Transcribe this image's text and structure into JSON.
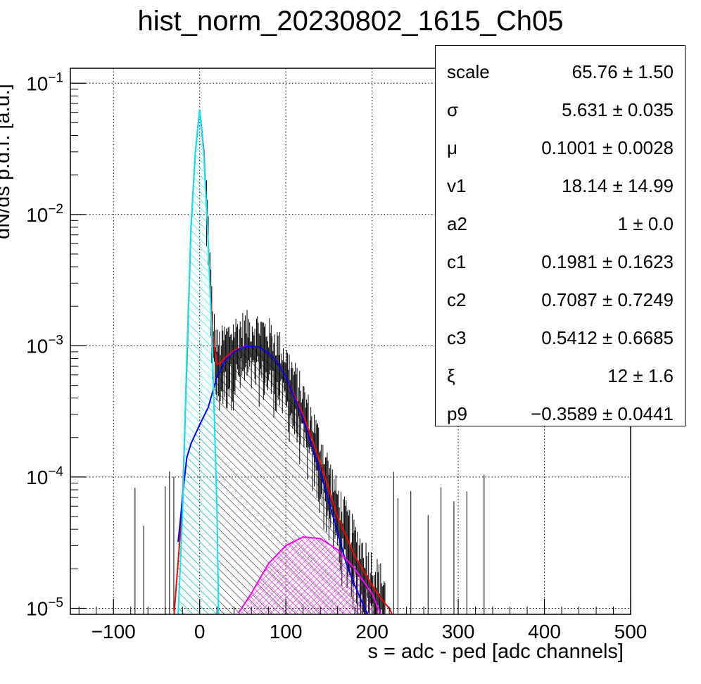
{
  "chart_data": {
    "type": "histogram",
    "title": "hist_norm_20230802_1615_Ch05",
    "xlabel": "s = adc - ped [adc channels]",
    "ylabel": "dN/ds p.d.f. [a.u.]",
    "xlim": [
      -150,
      500
    ],
    "ylim": [
      9e-06,
      0.13
    ],
    "yscale": "log",
    "grid": true,
    "xticks": [
      "−100",
      "0",
      "100",
      "200",
      "300",
      "400",
      "500"
    ],
    "xtick_values": [
      -100,
      0,
      100,
      200,
      300,
      400,
      500
    ],
    "yticks": [
      {
        "value": 0.1,
        "base": "10",
        "exp": "−1"
      },
      {
        "value": 0.01,
        "base": "10",
        "exp": "−2"
      },
      {
        "value": 0.001,
        "base": "10",
        "exp": "−3"
      },
      {
        "value": 0.0001,
        "base": "10",
        "exp": "−4"
      },
      {
        "value": 1e-05,
        "base": "10",
        "exp": "−5"
      }
    ],
    "curves": [
      {
        "color": "#ff0000",
        "role": "total fit",
        "x": [
          -30,
          -20,
          -10,
          -5,
          0,
          5,
          10,
          15,
          20,
          25,
          30,
          40,
          50,
          60,
          70,
          80,
          90,
          100,
          120,
          140,
          160,
          180,
          200,
          210,
          220,
          225
        ],
        "y": [
          8.5e-06,
          6e-05,
          0.008,
          0.03,
          0.063,
          0.03,
          0.006,
          0.0012,
          0.00072,
          0.00075,
          0.00082,
          0.00092,
          0.00098,
          0.001,
          0.00097,
          0.00088,
          0.00075,
          0.00058,
          0.0003,
          0.00013,
          5e-05,
          2.5e-05,
          1.5e-05,
          1.2e-05,
          1e-05,
          8.5e-06
        ]
      },
      {
        "color": "#0000ff",
        "role": "signal",
        "x": [
          -25,
          -22,
          -20,
          -15,
          -10,
          0,
          10,
          20,
          30,
          40,
          50,
          60,
          70,
          80,
          90,
          100,
          120,
          140,
          160,
          170,
          180,
          190,
          195
        ],
        "y": [
          3.2e-05,
          5e-05,
          7e-05,
          0.00014,
          0.00018,
          0.00025,
          0.00034,
          0.00058,
          0.00078,
          0.0009,
          0.00097,
          0.001,
          0.00097,
          0.00088,
          0.00075,
          0.00058,
          0.00028,
          0.00011,
          3.8e-05,
          2.2e-05,
          1.5e-05,
          1.05e-05,
          9e-06
        ]
      },
      {
        "color": "#00e8ff",
        "role": "pedestal",
        "x": [
          -25,
          -20,
          -15,
          -10,
          -5,
          0,
          5,
          10,
          15,
          20,
          22
        ],
        "y": [
          9e-06,
          5e-05,
          0.0008,
          0.008,
          0.03,
          0.063,
          0.028,
          0.006,
          0.0008,
          6e-05,
          9e-06
        ]
      },
      {
        "color": "#ff00ff",
        "role": "second component",
        "x": [
          45,
          60,
          80,
          100,
          120,
          140,
          160,
          180,
          200,
          210
        ],
        "y": [
          9.2e-06,
          1.3e-05,
          2.2e-05,
          3e-05,
          3.5e-05,
          3.4e-05,
          2.8e-05,
          2e-05,
          1.3e-05,
          9e-06
        ]
      }
    ]
  },
  "stats": [
    {
      "name": "scale",
      "value": "65.76 ± 1.50"
    },
    {
      "name": "σ",
      "value": "5.631 ± 0.035"
    },
    {
      "name": "μ",
      "value": "0.1001 ± 0.0028"
    },
    {
      "name": "v1",
      "value": "18.14 ± 14.99"
    },
    {
      "name": "a2",
      "value": "1 ± 0.0"
    },
    {
      "name": "c1",
      "value": "0.1981 ± 0.1623"
    },
    {
      "name": "c2",
      "value": "0.7087 ± 0.7249"
    },
    {
      "name": "c3",
      "value": "0.5412 ± 0.6685"
    },
    {
      "name": "ξ",
      "value": "12 ± 1.6"
    },
    {
      "name": "p9",
      "value": "−0.3589 ± 0.0441"
    }
  ]
}
